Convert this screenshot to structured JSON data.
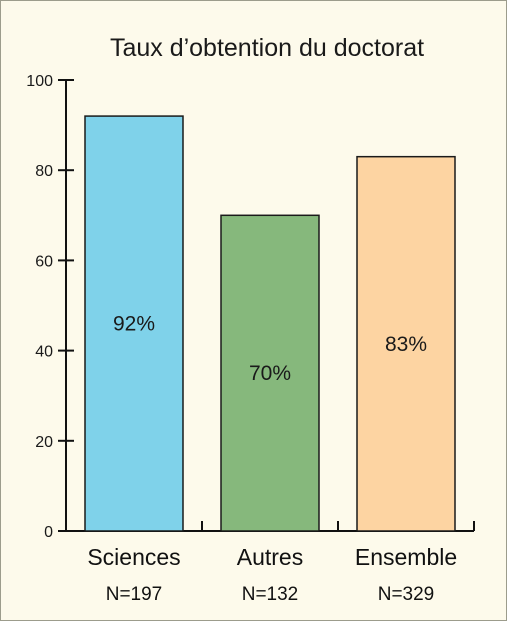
{
  "chart_data": {
    "type": "bar",
    "title": "Taux d’obtention du doctorat",
    "categories": [
      "Sciences",
      "Autres",
      "Ensemble"
    ],
    "sample_sizes": [
      "N=197",
      "N=132",
      "N=329"
    ],
    "values": [
      92,
      70,
      83
    ],
    "value_labels": [
      "92%",
      "70%",
      "83%"
    ],
    "colors": [
      "#7fd2ea",
      "#86b87c",
      "#fdd4a2"
    ],
    "ylim": [
      0,
      100
    ],
    "yticks": [
      0,
      20,
      40,
      60,
      80,
      100
    ],
    "xlabel": "",
    "ylabel": "",
    "grid": false
  }
}
